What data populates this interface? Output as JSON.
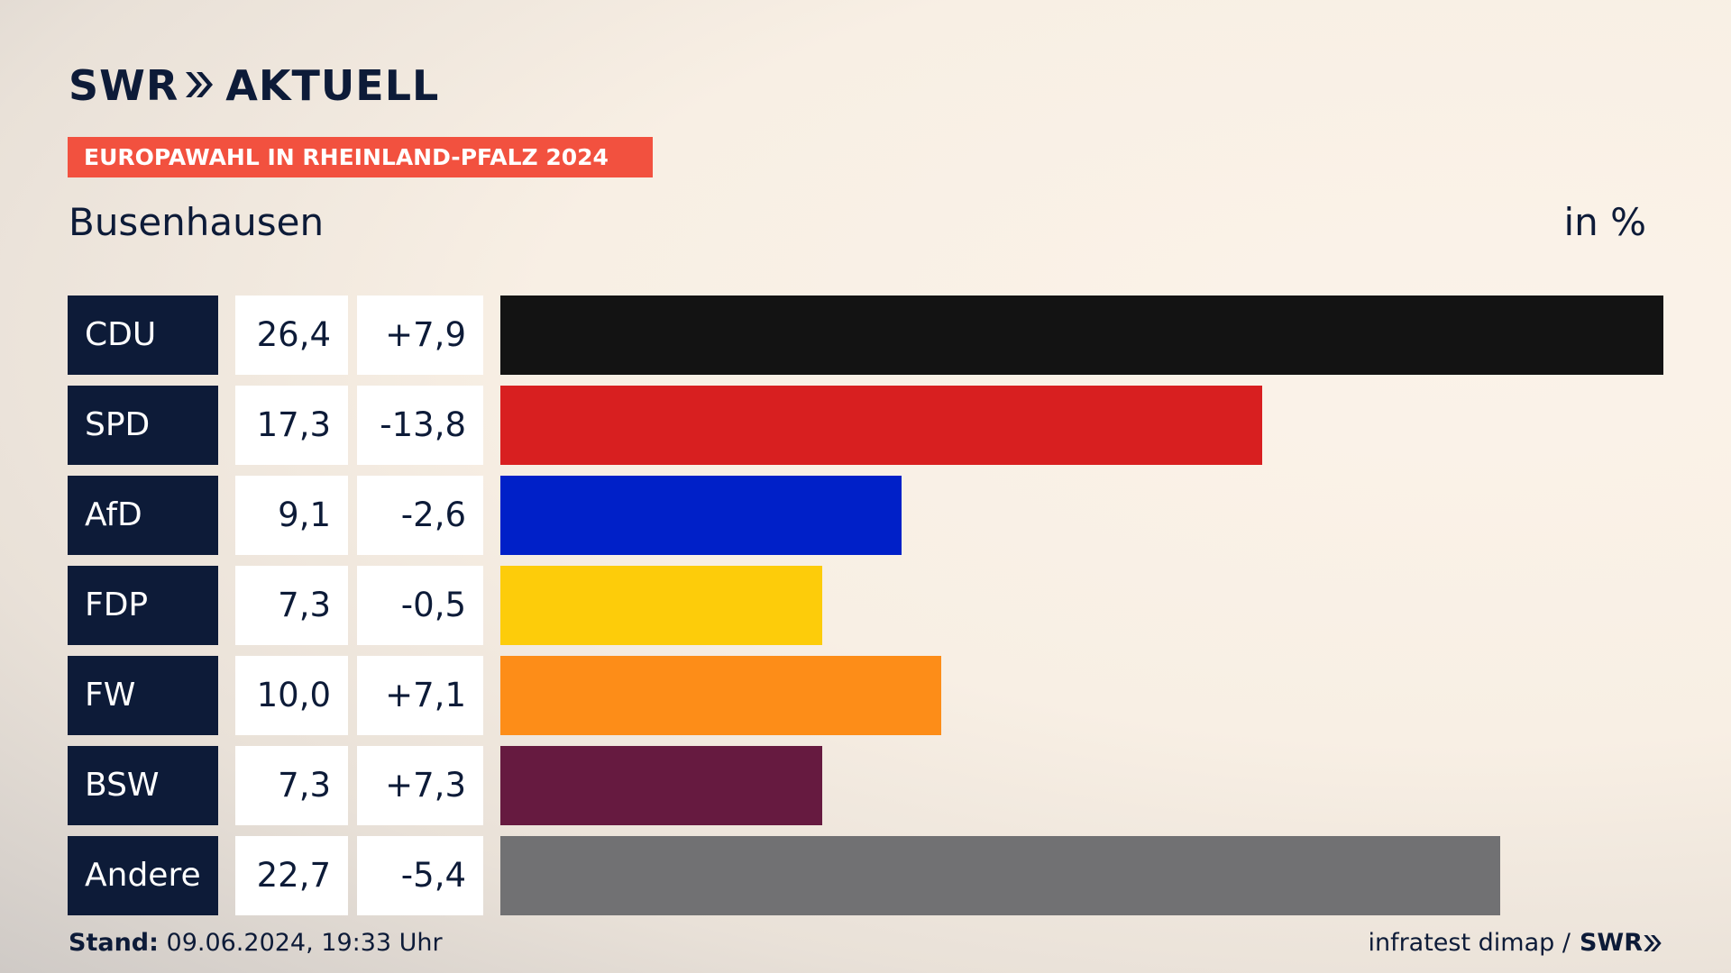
{
  "header": {
    "logo_left": "SWR",
    "logo_right": "AKTUELL",
    "banner": "EUROPAWAHL IN RHEINLAND-PFALZ 2024",
    "place": "Busenhausen",
    "unit": "in %"
  },
  "chart_data": {
    "type": "bar",
    "orientation": "horizontal",
    "categories": [
      "CDU",
      "SPD",
      "AfD",
      "FDP",
      "FW",
      "BSW",
      "Andere"
    ],
    "values": [
      26.4,
      17.3,
      9.1,
      7.3,
      10.0,
      7.3,
      22.7
    ],
    "value_labels": [
      "26,4",
      "17,3",
      "9,1",
      "7,3",
      "10,0",
      "7,3",
      "22,7"
    ],
    "diff_labels": [
      "+7,9",
      "-13,8",
      "-2,6",
      "-0,5",
      "+7,1",
      "+7,3",
      "-5,4"
    ],
    "colors": [
      "#131313",
      "#d81f20",
      "#0020c8",
      "#fdcc0a",
      "#fd8d18",
      "#661a40",
      "#717173"
    ],
    "xlim": [
      0,
      26.4
    ]
  },
  "footer": {
    "stand_label": "Stand:",
    "stand_value": "09.06.2024, 19:33 Uhr",
    "source": "infratest dimap /",
    "source_brand": "SWR"
  }
}
